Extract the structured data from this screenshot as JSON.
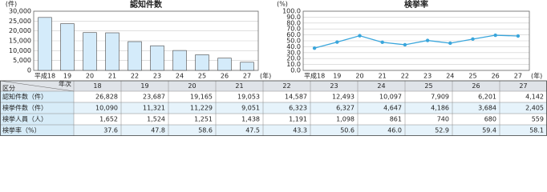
{
  "chart_data": [
    {
      "type": "bar",
      "title": "認知件数",
      "y_unit": "(件)",
      "x_unit": "(年)",
      "categories": [
        "平成18",
        "19",
        "20",
        "21",
        "22",
        "23",
        "24",
        "25",
        "26",
        "27"
      ],
      "values": [
        26828,
        23687,
        19165,
        19053,
        14587,
        12493,
        10097,
        7909,
        6201,
        4142
      ],
      "color": "#d4ebfa",
      "ylim": [
        0,
        30000
      ],
      "yticks": [
        0,
        {
          "value": 5000,
          "label": "5,000"
        },
        {
          "value": 10000,
          "label": "10,000"
        },
        {
          "value": 15000,
          "label": "15,000"
        },
        {
          "value": 20000,
          "label": "20,000"
        },
        {
          "value": 25000,
          "label": "25,000"
        },
        {
          "value": 30000,
          "label": "30,000"
        }
      ],
      "grid": true
    },
    {
      "type": "line",
      "title": "検挙率",
      "y_unit": "(%)",
      "x_unit": "(年)",
      "categories": [
        "平成18",
        "19",
        "20",
        "21",
        "22",
        "23",
        "24",
        "25",
        "26",
        "27"
      ],
      "values": [
        37.6,
        47.8,
        58.6,
        47.5,
        43.3,
        50.6,
        46.0,
        52.9,
        59.4,
        58.1
      ],
      "color": "#3aa6dc",
      "ylim": [
        0,
        100
      ],
      "yticks": [
        {
          "value": 0,
          "label": "0.0"
        },
        {
          "value": 10,
          "label": "10.0"
        },
        {
          "value": 20,
          "label": "20.0"
        },
        {
          "value": 30,
          "label": "30.0"
        },
        {
          "value": 40,
          "label": "40.0"
        },
        {
          "value": 50,
          "label": "50.0"
        },
        {
          "value": 60,
          "label": "60.0"
        },
        {
          "value": 70,
          "label": "70.0"
        },
        {
          "value": 80,
          "label": "80.0"
        },
        {
          "value": 90,
          "label": "90.0"
        },
        {
          "value": 100,
          "label": "100.0"
        }
      ],
      "grid": true
    }
  ],
  "table": {
    "corner": [
      "区分",
      "年次"
    ],
    "columns": [
      "18",
      "19",
      "20",
      "21",
      "22",
      "23",
      "24",
      "25",
      "26",
      "27"
    ],
    "rows": [
      [
        "認知件数（件）",
        "26,828",
        "23,687",
        "19,165",
        "19,053",
        "14,587",
        "12,493",
        "10,097",
        "7,909",
        "6,201",
        "4,142"
      ],
      [
        "検挙件数（件）",
        "10,090",
        "11,321",
        "11,229",
        "9,051",
        "6,323",
        "6,327",
        "4,647",
        "4,186",
        "3,684",
        "2,405"
      ],
      [
        "検挙人員（人）",
        "1,652",
        "1,524",
        "1,251",
        "1,438",
        "1,191",
        "1,098",
        "861",
        "740",
        "680",
        "559"
      ],
      [
        "検挙率（%）",
        "37.6",
        "47.8",
        "58.6",
        "47.5",
        "43.3",
        "50.6",
        "46.0",
        "52.9",
        "59.4",
        "58.1"
      ]
    ]
  }
}
